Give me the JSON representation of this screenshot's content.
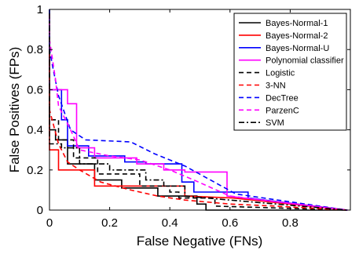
{
  "chart_data": {
    "type": "line",
    "title": "",
    "xlabel": "False Negative (FNs)",
    "ylabel": "False Positives (FPs)",
    "xlim": [
      0,
      1
    ],
    "ylim": [
      0,
      1
    ],
    "xticks": [
      "0",
      "0.2",
      "0.4",
      "0.6",
      "0.8"
    ],
    "xtick_values": [
      0,
      0.2,
      0.4,
      0.6,
      0.8
    ],
    "yticks": [
      "0",
      "0.2",
      "0.4",
      "0.6",
      "0.8",
      "1"
    ],
    "ytick_values": [
      0,
      0.2,
      0.4,
      0.6,
      0.8,
      1
    ],
    "grid": false,
    "legend_position": "top-right",
    "series": [
      {
        "name": "Bayes-Normal-1",
        "color": "#000000",
        "dash": "solid",
        "x": [
          0.0,
          0.0,
          0.02,
          0.02,
          0.06,
          0.06,
          0.15,
          0.15,
          0.24,
          0.24,
          0.36,
          0.36,
          0.49,
          0.49,
          0.52,
          0.52,
          0.99
        ],
        "y": [
          1.0,
          0.4,
          0.4,
          0.35,
          0.35,
          0.23,
          0.23,
          0.15,
          0.15,
          0.11,
          0.11,
          0.07,
          0.07,
          0.03,
          0.03,
          0.0,
          0.0
        ]
      },
      {
        "name": "Bayes-Normal-2",
        "color": "#ff0000",
        "dash": "solid",
        "x": [
          0.0,
          0.0,
          0.03,
          0.03,
          0.15,
          0.15,
          0.45,
          0.45,
          0.61,
          0.99
        ],
        "y": [
          0.8,
          0.3,
          0.3,
          0.2,
          0.2,
          0.12,
          0.12,
          0.07,
          0.06,
          0.0
        ]
      },
      {
        "name": "Bayes-Normal-U",
        "color": "#0000ff",
        "dash": "solid",
        "x": [
          0.0,
          0.0,
          0.04,
          0.04,
          0.06,
          0.06,
          0.13,
          0.13,
          0.25,
          0.25,
          0.32,
          0.32,
          0.44,
          0.44,
          0.48,
          0.48,
          0.66,
          0.66,
          0.99
        ],
        "y": [
          0.65,
          0.6,
          0.6,
          0.45,
          0.45,
          0.32,
          0.32,
          0.27,
          0.27,
          0.24,
          0.24,
          0.23,
          0.23,
          0.14,
          0.14,
          0.09,
          0.09,
          0.06,
          0.0
        ]
      },
      {
        "name": "Polynomial classifier",
        "color": "#ff00ff",
        "dash": "solid",
        "x": [
          0.0,
          0.0,
          0.06,
          0.06,
          0.09,
          0.09,
          0.15,
          0.15,
          0.29,
          0.29,
          0.38,
          0.38,
          0.45,
          0.45,
          0.59,
          0.59,
          0.99
        ],
        "y": [
          0.98,
          0.6,
          0.6,
          0.53,
          0.53,
          0.31,
          0.31,
          0.26,
          0.26,
          0.23,
          0.23,
          0.2,
          0.2,
          0.19,
          0.19,
          0.07,
          0.0
        ]
      },
      {
        "name": "Logistic",
        "color": "#000000",
        "dash": "6,4",
        "x": [
          0.0,
          0.0,
          0.03,
          0.03,
          0.08,
          0.08,
          0.16,
          0.16,
          0.3,
          0.3,
          0.4,
          0.4,
          0.43,
          0.43,
          0.55,
          0.55,
          0.99
        ],
        "y": [
          0.95,
          0.45,
          0.45,
          0.35,
          0.35,
          0.26,
          0.26,
          0.18,
          0.18,
          0.12,
          0.12,
          0.09,
          0.09,
          0.06,
          0.06,
          0.02,
          0.0
        ]
      },
      {
        "name": "3-NN",
        "color": "#ff0000",
        "dash": "6,4",
        "x": [
          0.0,
          0.0,
          0.03,
          0.06,
          0.1,
          0.17,
          0.27,
          0.36,
          0.45,
          0.6,
          0.75,
          0.99
        ],
        "y": [
          0.78,
          0.5,
          0.33,
          0.24,
          0.2,
          0.14,
          0.1,
          0.07,
          0.05,
          0.03,
          0.02,
          0.0
        ]
      },
      {
        "name": "DecTree",
        "color": "#0000ff",
        "dash": "6,4",
        "x": [
          0.0,
          0.0,
          0.01,
          0.03,
          0.07,
          0.12,
          0.27,
          0.35,
          0.45,
          0.62,
          0.99
        ],
        "y": [
          1.0,
          0.8,
          0.72,
          0.57,
          0.4,
          0.35,
          0.34,
          0.28,
          0.22,
          0.08,
          0.0
        ]
      },
      {
        "name": "ParzenC",
        "color": "#ff00ff",
        "dash": "6,4",
        "x": [
          0.0,
          0.0,
          0.02,
          0.03,
          0.07,
          0.1,
          0.2,
          0.3,
          0.4,
          0.48,
          0.6,
          0.99
        ],
        "y": [
          0.97,
          0.85,
          0.65,
          0.52,
          0.4,
          0.3,
          0.27,
          0.25,
          0.2,
          0.15,
          0.07,
          0.0
        ]
      },
      {
        "name": "SVM",
        "color": "#000000",
        "dash": "7,3,2,3",
        "x": [
          0.0,
          0.0,
          0.04,
          0.04,
          0.1,
          0.1,
          0.2,
          0.2,
          0.32,
          0.32,
          0.38,
          0.38,
          0.45,
          0.45,
          0.6,
          0.99
        ],
        "y": [
          0.98,
          0.33,
          0.33,
          0.31,
          0.31,
          0.23,
          0.23,
          0.2,
          0.2,
          0.15,
          0.15,
          0.12,
          0.12,
          0.07,
          0.05,
          0.0
        ]
      }
    ]
  }
}
